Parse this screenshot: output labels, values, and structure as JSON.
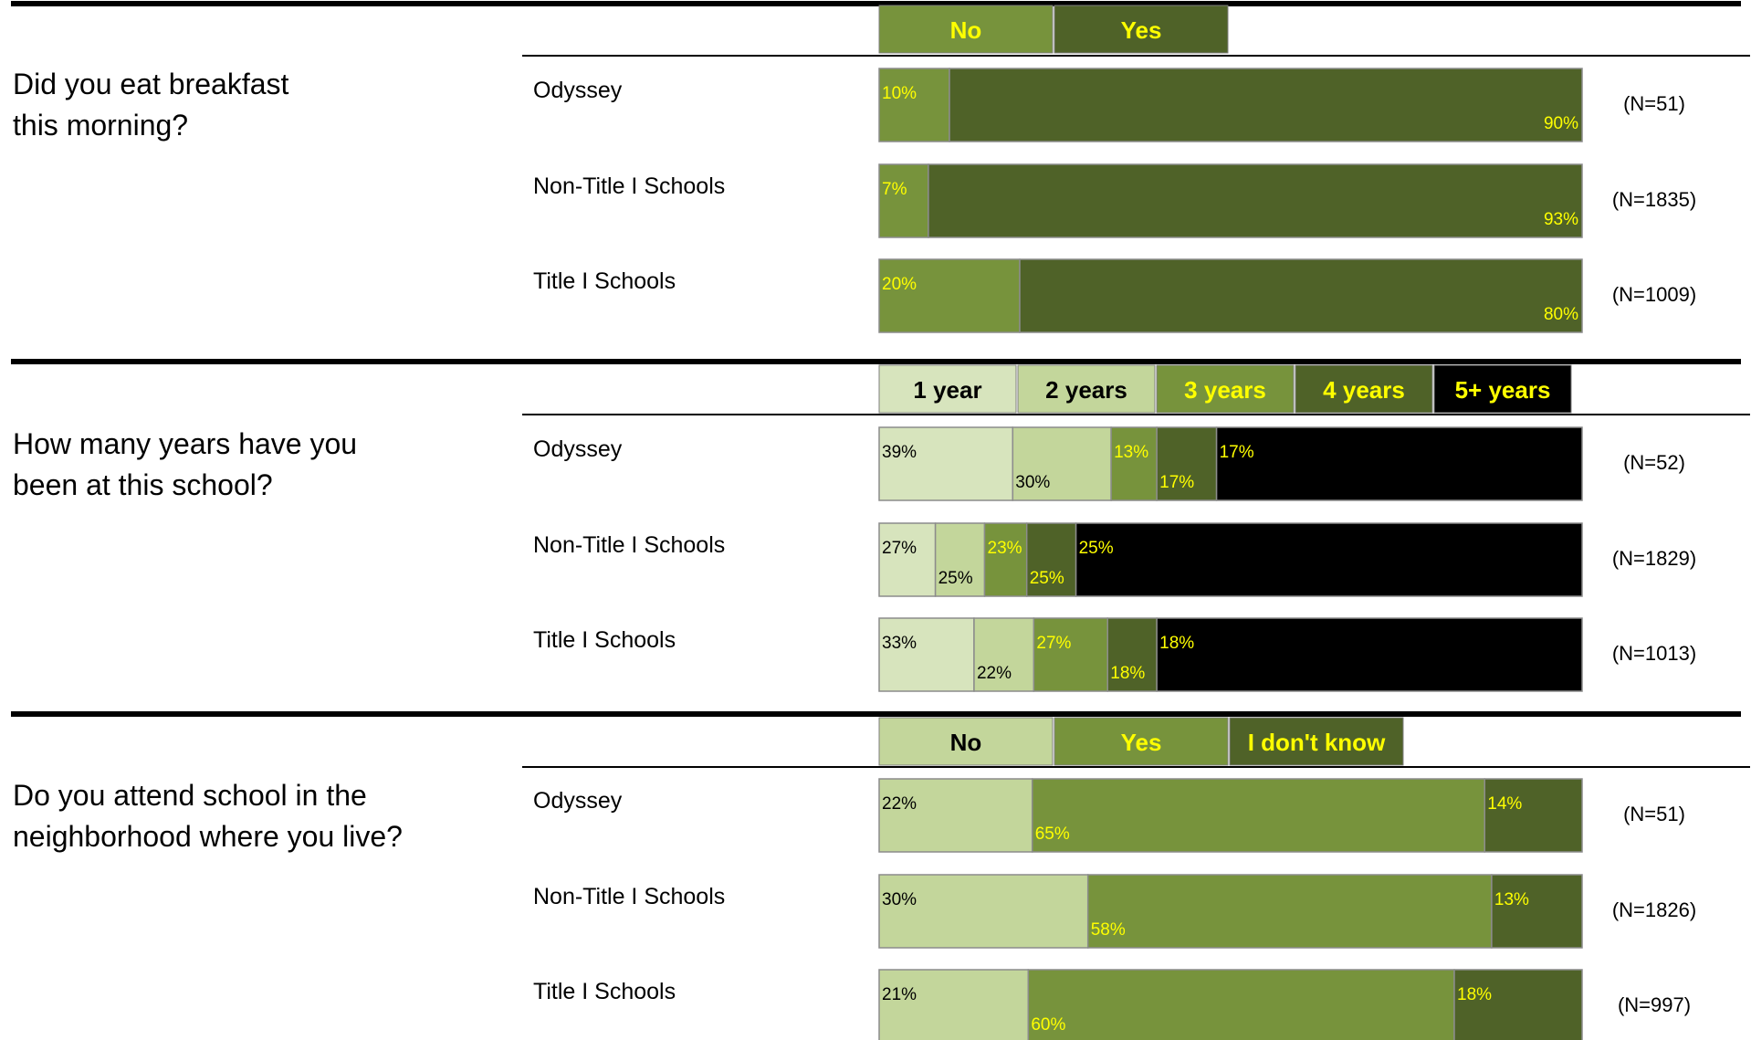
{
  "chart_data": [
    {
      "type": "bar",
      "question": "Did you eat breakfast this morning?",
      "legend": [
        "No",
        "Yes"
      ],
      "colors": [
        "#77933c",
        "#4f6228"
      ],
      "legend_text_colors": [
        "#ffff00",
        "#ffff00"
      ],
      "label_colors": [
        "#ffff00",
        "#ffff00"
      ],
      "categories": [
        "Odyssey",
        "Non-Title I Schools",
        "Title I Schools"
      ],
      "n": [
        "(N=51)",
        "(N=1835)",
        "(N=1009)"
      ],
      "series": [
        {
          "name": "No",
          "values": [
            10,
            7,
            20
          ]
        },
        {
          "name": "Yes",
          "values": [
            90,
            93,
            80
          ]
        }
      ]
    },
    {
      "type": "bar",
      "question": "How many years have you been at this school?",
      "legend": [
        "1 year",
        "2 years",
        "3 years",
        "4 years",
        "5+ years"
      ],
      "colors": [
        "#d7e4bd",
        "#c3d69b",
        "#77933c",
        "#4f6228",
        "#000000"
      ],
      "legend_text_colors": [
        "#000000",
        "#000000",
        "#ffff00",
        "#ffff00",
        "#ffff00"
      ],
      "label_colors": [
        "#000000",
        "#000000",
        "#ffff00",
        "#ffff00",
        "#ffff00"
      ],
      "categories": [
        "Odyssey",
        "Non-Title I Schools",
        "Title I Schools"
      ],
      "n": [
        "(N=52)",
        "(N=1829)",
        "(N=1013)"
      ],
      "series": [
        {
          "name": "1 year",
          "values": [
            39,
            27,
            33
          ]
        },
        {
          "name": "2 years",
          "values": [
            30,
            25,
            22
          ]
        },
        {
          "name": "3 years",
          "values": [
            13,
            23,
            27
          ]
        },
        {
          "name": "4 years",
          "values": [
            17,
            25,
            18
          ]
        },
        {
          "name": "5+ years",
          "values": [
            17,
            25,
            18
          ]
        }
      ],
      "bar_widths": [
        [
          19.0,
          14.0,
          6.5,
          8.5,
          52.0
        ],
        [
          8.0,
          7.0,
          6.0,
          7.0,
          72.0
        ],
        [
          13.5,
          8.5,
          10.5,
          7.0,
          60.5
        ]
      ]
    },
    {
      "type": "bar",
      "question": "Do you attend school in the neighborhood where you live?",
      "legend": [
        "No",
        "Yes",
        "I don't know"
      ],
      "colors": [
        "#c3d69b",
        "#77933c",
        "#4f6228"
      ],
      "legend_text_colors": [
        "#000000",
        "#ffff00",
        "#ffff00"
      ],
      "label_colors": [
        "#000000",
        "#ffff00",
        "#ffff00"
      ],
      "categories": [
        "Odyssey",
        "Non-Title I Schools",
        "Title I Schools"
      ],
      "n": [
        "(N=51)",
        "(N=1826)",
        "(N=997)"
      ],
      "series": [
        {
          "name": "No",
          "values": [
            22,
            30,
            21
          ]
        },
        {
          "name": "Yes",
          "values": [
            65,
            58,
            60
          ]
        },
        {
          "name": "I don't know",
          "values": [
            14,
            13,
            18
          ]
        }
      ]
    }
  ]
}
